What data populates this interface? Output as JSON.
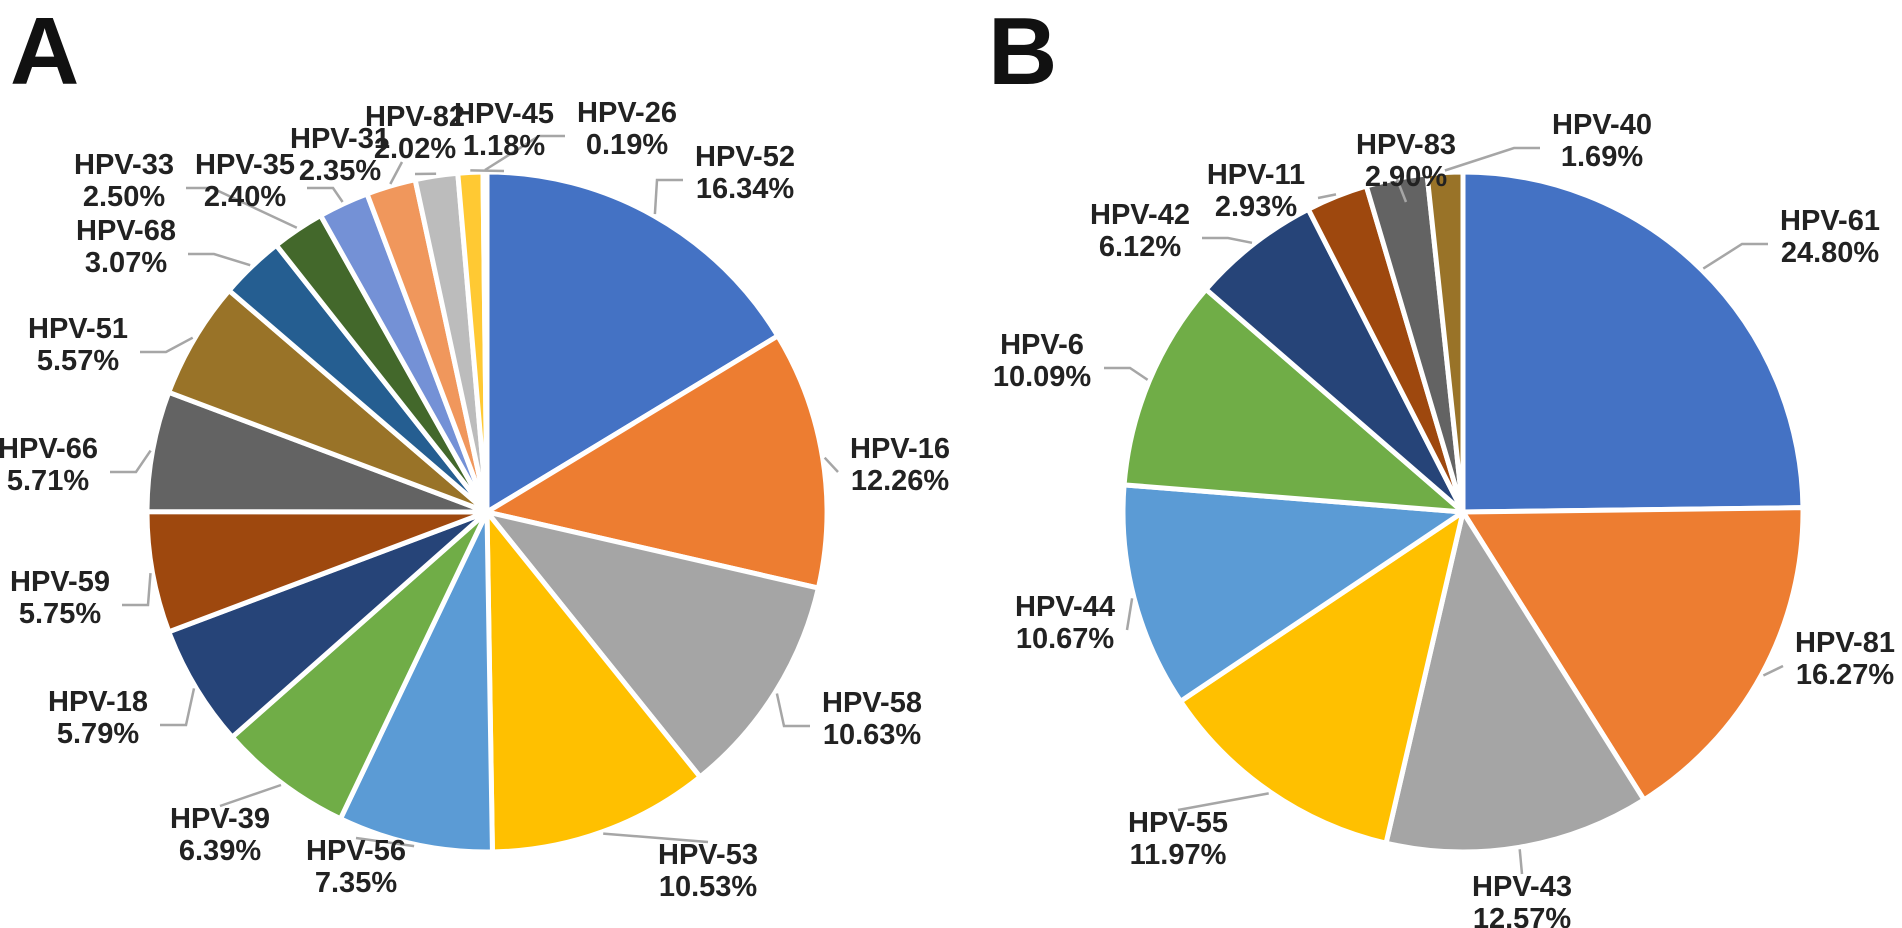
{
  "figure": {
    "background": "#FFFFFF",
    "label_color": "#222222",
    "leader_color": "#A6A6A6",
    "separator_color": "#FFFFFF"
  },
  "chart_data": [
    {
      "panel": "A",
      "type": "pie",
      "direction": "clockwise",
      "start_angle_deg": 0,
      "legend_position": "outside-labels",
      "slices": [
        {
          "label": "HPV-52",
          "value_pct": 16.34,
          "color": "#4472C4"
        },
        {
          "label": "HPV-16",
          "value_pct": 12.26,
          "color": "#ED7D31"
        },
        {
          "label": "HPV-58",
          "value_pct": 10.63,
          "color": "#A5A5A5"
        },
        {
          "label": "HPV-53",
          "value_pct": 10.53,
          "color": "#FFC000"
        },
        {
          "label": "HPV-56",
          "value_pct": 7.35,
          "color": "#5B9BD5"
        },
        {
          "label": "HPV-39",
          "value_pct": 6.39,
          "color": "#70AD47"
        },
        {
          "label": "HPV-18",
          "value_pct": 5.79,
          "color": "#264478"
        },
        {
          "label": "HPV-59",
          "value_pct": 5.75,
          "color": "#9E480E"
        },
        {
          "label": "HPV-66",
          "value_pct": 5.71,
          "color": "#636363"
        },
        {
          "label": "HPV-51",
          "value_pct": 5.57,
          "color": "#997328"
        },
        {
          "label": "HPV-68",
          "value_pct": 3.07,
          "color": "#255E91"
        },
        {
          "label": "HPV-33",
          "value_pct": 2.5,
          "color": "#43682B"
        },
        {
          "label": "HPV-35",
          "value_pct": 2.4,
          "color": "#7491D6"
        },
        {
          "label": "HPV-31",
          "value_pct": 2.35,
          "color": "#F0975C"
        },
        {
          "label": "HPV-82",
          "value_pct": 2.02,
          "color": "#BCBCBC"
        },
        {
          "label": "HPV-45",
          "value_pct": 1.18,
          "color": "#FFC933"
        },
        {
          "label": "HPV-26",
          "value_pct": 0.19,
          "color": "#9DC3E6"
        }
      ]
    },
    {
      "panel": "B",
      "type": "pie",
      "direction": "clockwise",
      "start_angle_deg": 0,
      "legend_position": "outside-labels",
      "slices": [
        {
          "label": "HPV-61",
          "value_pct": 24.8,
          "color": "#4472C4"
        },
        {
          "label": "HPV-81",
          "value_pct": 16.27,
          "color": "#ED7D31"
        },
        {
          "label": "HPV-43",
          "value_pct": 12.57,
          "color": "#A5A5A5"
        },
        {
          "label": "HPV-55",
          "value_pct": 11.97,
          "color": "#FFC000"
        },
        {
          "label": "HPV-44",
          "value_pct": 10.67,
          "color": "#5B9BD5"
        },
        {
          "label": "HPV-6",
          "value_pct": 10.09,
          "color": "#70AD47"
        },
        {
          "label": "HPV-42",
          "value_pct": 6.12,
          "color": "#264478"
        },
        {
          "label": "HPV-11",
          "value_pct": 2.93,
          "color": "#9E480E"
        },
        {
          "label": "HPV-83",
          "value_pct": 2.9,
          "color": "#636363"
        },
        {
          "label": "HPV-40",
          "value_pct": 1.69,
          "color": "#997328"
        }
      ]
    }
  ]
}
